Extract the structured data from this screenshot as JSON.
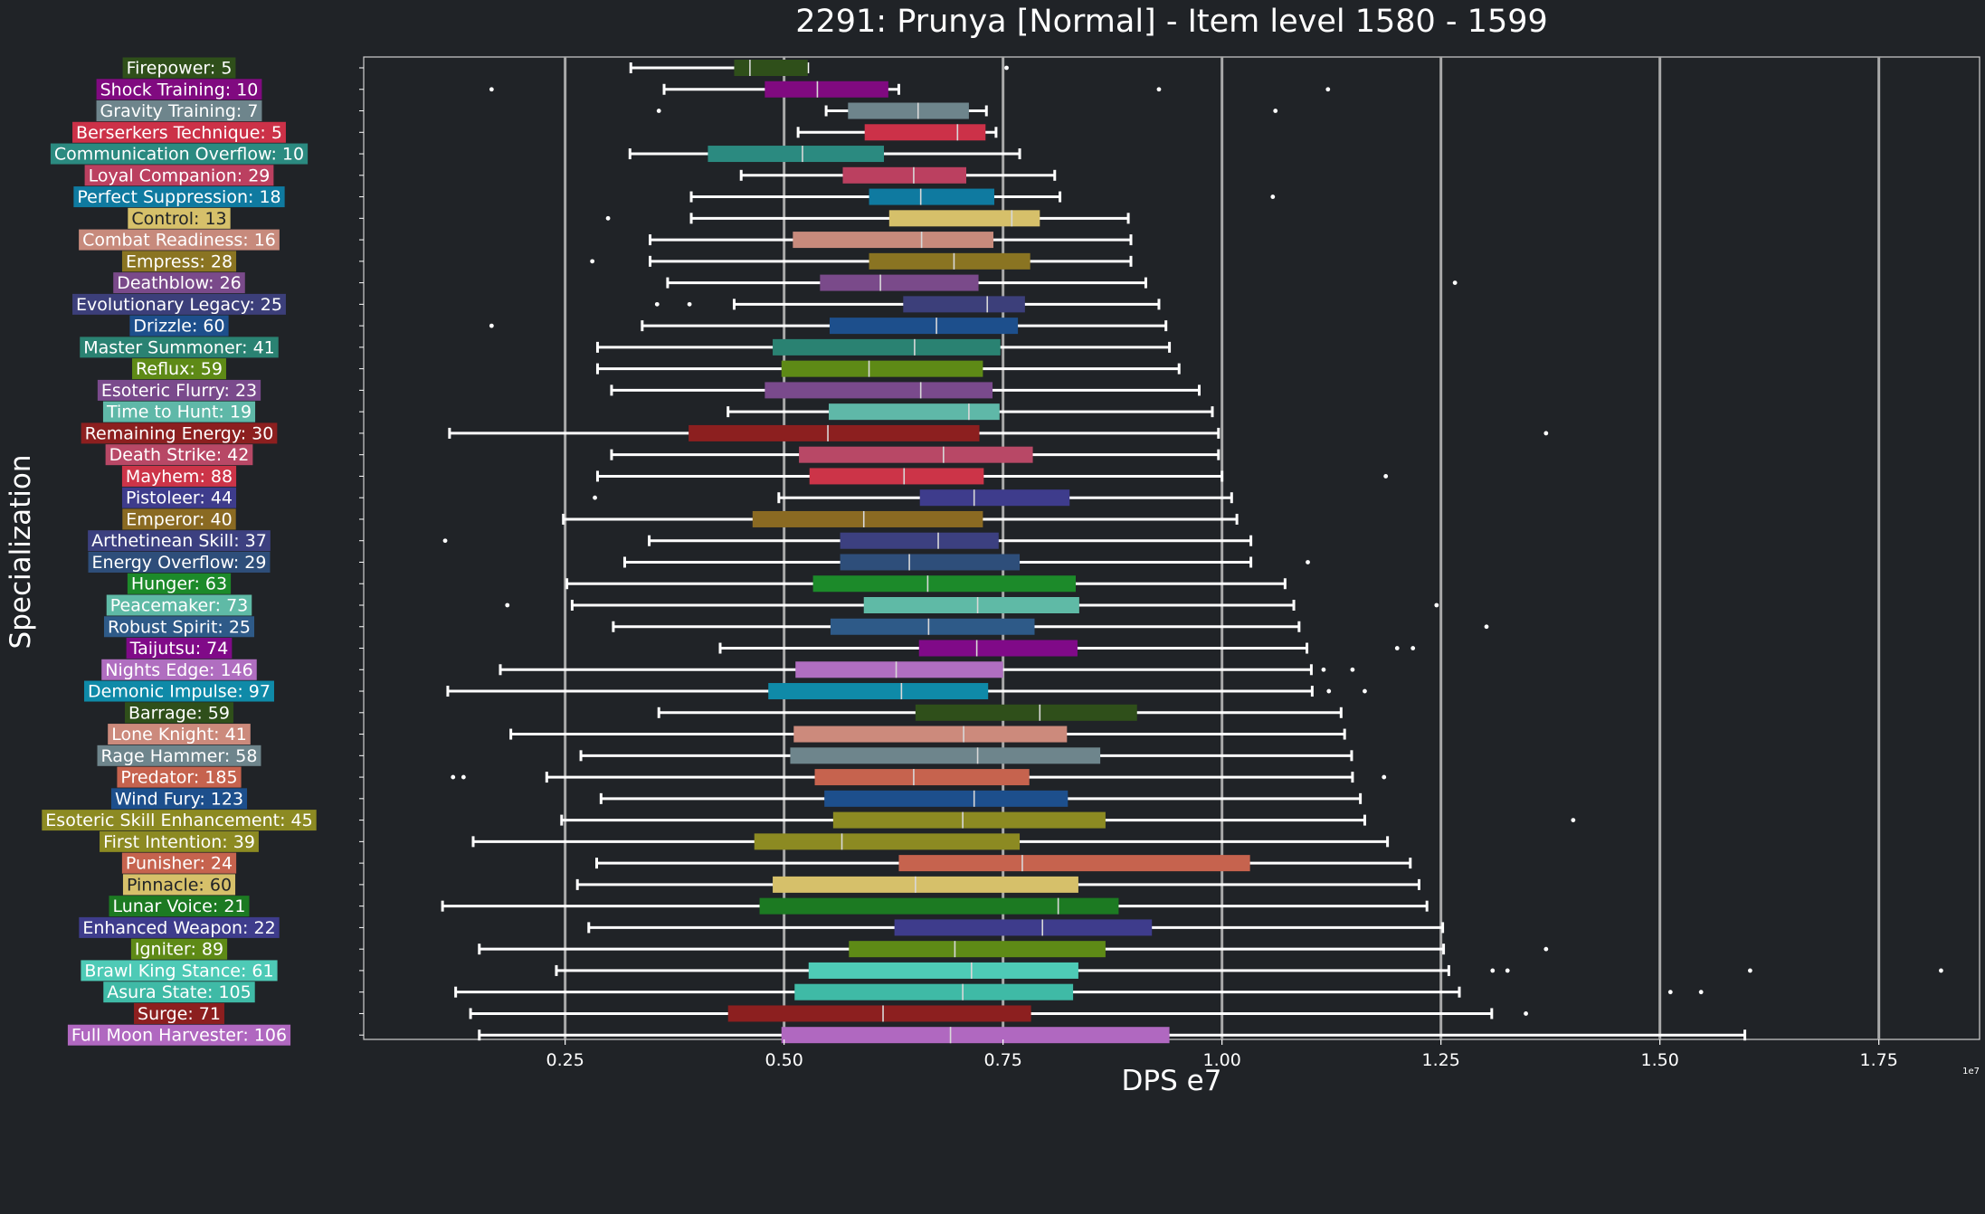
{
  "chart_data": {
    "type": "boxplot",
    "orientation": "horizontal",
    "title": "2291: Prunya [Normal] - Item level 1580 - 1599",
    "xlabel": "DPS e7",
    "ylabel": "Specialization",
    "x_scale_label": "1e7",
    "xlim": [
      0.02,
      1.865
    ],
    "xticks": [
      0.25,
      0.5,
      0.75,
      1.0,
      1.25,
      1.5,
      1.75
    ],
    "xtick_labels": [
      "0.25",
      "0.50",
      "0.75",
      "1.00",
      "1.25",
      "1.50",
      "1.75"
    ],
    "grid": "vertical gridlines at major x ticks",
    "series": [
      {
        "name": "Firepower: 5",
        "color": "#2f4f1a",
        "whisker_low": 0.325,
        "q1": 0.443,
        "median": 0.461,
        "q3": 0.527,
        "whisker_high": 0.527,
        "outliers": [
          0.754
        ]
      },
      {
        "name": "Shock Training: 10",
        "color": "#800a80",
        "whisker_low": 0.363,
        "q1": 0.478,
        "median": 0.538,
        "q3": 0.619,
        "whisker_high": 0.631,
        "outliers": [
          0.166,
          0.928,
          1.121
        ]
      },
      {
        "name": "Gravity Training: 7",
        "color": "#6e858c",
        "whisker_low": 0.548,
        "q1": 0.573,
        "median": 0.653,
        "q3": 0.711,
        "whisker_high": 0.731,
        "outliers": [
          0.357,
          1.061
        ]
      },
      {
        "name": "Berserkers Technique: 5",
        "color": "#cc3148",
        "whisker_low": 0.516,
        "q1": 0.592,
        "median": 0.698,
        "q3": 0.73,
        "whisker_high": 0.742,
        "outliers": []
      },
      {
        "name": "Communication Overflow: 10",
        "color": "#2b8a80",
        "whisker_low": 0.324,
        "q1": 0.413,
        "median": 0.521,
        "q3": 0.614,
        "whisker_high": 0.769,
        "outliers": []
      },
      {
        "name": "Loyal Companion: 29",
        "color": "#bb4060",
        "whisker_low": 0.451,
        "q1": 0.567,
        "median": 0.648,
        "q3": 0.708,
        "whisker_high": 0.809,
        "outliers": []
      },
      {
        "name": "Perfect Suppression: 18",
        "color": "#0f7aa0",
        "whisker_low": 0.394,
        "q1": 0.597,
        "median": 0.656,
        "q3": 0.74,
        "whisker_high": 0.815,
        "outliers": [
          1.058
        ]
      },
      {
        "name": "Control: 13",
        "color": "#d6c06a",
        "whisker_low": 0.394,
        "q1": 0.62,
        "median": 0.76,
        "q3": 0.792,
        "whisker_high": 0.893,
        "outliers": [
          0.299
        ]
      },
      {
        "name": "Combat Readiness: 16",
        "color": "#c78a7c",
        "whisker_low": 0.347,
        "q1": 0.51,
        "median": 0.657,
        "q3": 0.739,
        "whisker_high": 0.896,
        "outliers": []
      },
      {
        "name": "Empress: 28",
        "color": "#8a7422",
        "whisker_low": 0.347,
        "q1": 0.597,
        "median": 0.694,
        "q3": 0.781,
        "whisker_high": 0.896,
        "outliers": [
          0.281
        ]
      },
      {
        "name": "Deathblow: 26",
        "color": "#7a4a8a",
        "whisker_low": 0.367,
        "q1": 0.541,
        "median": 0.61,
        "q3": 0.722,
        "whisker_high": 0.913,
        "outliers": [
          1.266
        ]
      },
      {
        "name": "Evolutionary Legacy: 25",
        "color": "#3c3f7a",
        "whisker_low": 0.443,
        "q1": 0.636,
        "median": 0.732,
        "q3": 0.775,
        "whisker_high": 0.928,
        "outliers": [
          0.355,
          0.392
        ]
      },
      {
        "name": "Drizzle: 60",
        "color": "#1d4f8c",
        "whisker_low": 0.338,
        "q1": 0.552,
        "median": 0.674,
        "q3": 0.767,
        "whisker_high": 0.936,
        "outliers": [
          0.166
        ]
      },
      {
        "name": "Master Summoner: 41",
        "color": "#2a8272",
        "whisker_low": 0.287,
        "q1": 0.487,
        "median": 0.649,
        "q3": 0.747,
        "whisker_high": 0.94,
        "outliers": []
      },
      {
        "name": "Reflux: 59",
        "color": "#5e8a16",
        "whisker_low": 0.287,
        "q1": 0.497,
        "median": 0.597,
        "q3": 0.727,
        "whisker_high": 0.951,
        "outliers": []
      },
      {
        "name": "Esoteric Flurry: 23",
        "color": "#7a4a8c",
        "whisker_low": 0.303,
        "q1": 0.478,
        "median": 0.656,
        "q3": 0.738,
        "whisker_high": 0.974,
        "outliers": []
      },
      {
        "name": "Time to Hunt: 19",
        "color": "#5fb8a8",
        "whisker_low": 0.436,
        "q1": 0.551,
        "median": 0.711,
        "q3": 0.746,
        "whisker_high": 0.989,
        "outliers": []
      },
      {
        "name": "Remaining Energy: 30",
        "color": "#8c1f1f",
        "whisker_low": 0.118,
        "q1": 0.391,
        "median": 0.55,
        "q3": 0.723,
        "whisker_high": 0.996,
        "outliers": [
          1.37
        ]
      },
      {
        "name": "Death Strike: 42",
        "color": "#b84866",
        "whisker_low": 0.303,
        "q1": 0.517,
        "median": 0.682,
        "q3": 0.784,
        "whisker_high": 0.996,
        "outliers": []
      },
      {
        "name": "Mayhem: 88",
        "color": "#cc3448",
        "whisker_low": 0.287,
        "q1": 0.529,
        "median": 0.637,
        "q3": 0.728,
        "whisker_high": 1.0,
        "outliers": [
          1.187
        ]
      },
      {
        "name": "Pistoleer: 44",
        "color": "#3e3c8c",
        "whisker_low": 0.494,
        "q1": 0.655,
        "median": 0.717,
        "q3": 0.826,
        "whisker_high": 1.011,
        "outliers": [
          0.284
        ]
      },
      {
        "name": "Emperor: 40",
        "color": "#8a6a22",
        "whisker_low": 0.248,
        "q1": 0.464,
        "median": 0.591,
        "q3": 0.727,
        "whisker_high": 1.017,
        "outliers": []
      },
      {
        "name": "Arthetinean Skill: 37",
        "color": "#3c4080",
        "whisker_low": 0.346,
        "q1": 0.564,
        "median": 0.676,
        "q3": 0.745,
        "whisker_high": 1.033,
        "outliers": [
          0.113
        ]
      },
      {
        "name": "Energy Overflow: 29",
        "color": "#2e4e7a",
        "whisker_low": 0.318,
        "q1": 0.564,
        "median": 0.643,
        "q3": 0.769,
        "whisker_high": 1.033,
        "outliers": [
          1.098
        ]
      },
      {
        "name": "Hunger: 63",
        "color": "#1c8a2a",
        "whisker_low": 0.252,
        "q1": 0.533,
        "median": 0.664,
        "q3": 0.833,
        "whisker_high": 1.072,
        "outliers": []
      },
      {
        "name": "Peacemaker: 73",
        "color": "#5fbaa6",
        "whisker_low": 0.258,
        "q1": 0.591,
        "median": 0.721,
        "q3": 0.837,
        "whisker_high": 1.082,
        "outliers": [
          0.184,
          1.245
        ]
      },
      {
        "name": "Robust Spirit: 25",
        "color": "#2e5a88",
        "whisker_low": 0.305,
        "q1": 0.553,
        "median": 0.665,
        "q3": 0.786,
        "whisker_high": 1.088,
        "outliers": [
          1.302
        ]
      },
      {
        "name": "Taijutsu: 74",
        "color": "#800a88",
        "whisker_low": 0.427,
        "q1": 0.654,
        "median": 0.72,
        "q3": 0.835,
        "whisker_high": 1.097,
        "outliers": [
          1.2,
          1.218
        ]
      },
      {
        "name": "Nights Edge: 146",
        "color": "#b06ec0",
        "whisker_low": 0.176,
        "q1": 0.513,
        "median": 0.628,
        "q3": 0.75,
        "whisker_high": 1.102,
        "outliers": [
          1.116,
          1.149
        ]
      },
      {
        "name": "Demonic Impulse: 97",
        "color": "#0f8aa8",
        "whisker_low": 0.116,
        "q1": 0.482,
        "median": 0.634,
        "q3": 0.733,
        "whisker_high": 1.103,
        "outliers": [
          1.122,
          1.163
        ]
      },
      {
        "name": "Barrage: 59",
        "color": "#2f4f1a",
        "whisker_low": 0.357,
        "q1": 0.65,
        "median": 0.792,
        "q3": 0.903,
        "whisker_high": 1.136,
        "outliers": []
      },
      {
        "name": "Lone Knight: 41",
        "color": "#cc8a7c",
        "whisker_low": 0.188,
        "q1": 0.511,
        "median": 0.705,
        "q3": 0.823,
        "whisker_high": 1.14,
        "outliers": []
      },
      {
        "name": "Rage Hammer: 58",
        "color": "#6e858c",
        "whisker_low": 0.268,
        "q1": 0.507,
        "median": 0.721,
        "q3": 0.861,
        "whisker_high": 1.148,
        "outliers": []
      },
      {
        "name": "Predator: 185",
        "color": "#c6634e",
        "whisker_low": 0.229,
        "q1": 0.535,
        "median": 0.648,
        "q3": 0.78,
        "whisker_high": 1.149,
        "outliers": [
          0.122,
          0.134,
          1.185
        ]
      },
      {
        "name": "Wind Fury: 123",
        "color": "#1d4f8c",
        "whisker_low": 0.291,
        "q1": 0.546,
        "median": 0.717,
        "q3": 0.824,
        "whisker_high": 1.158,
        "outliers": []
      },
      {
        "name": "Esoteric Skill Enhancement: 45",
        "color": "#8c8a22",
        "whisker_low": 0.246,
        "q1": 0.556,
        "median": 0.704,
        "q3": 0.867,
        "whisker_high": 1.163,
        "outliers": [
          1.401
        ]
      },
      {
        "name": "First Intention: 39",
        "color": "#8c8a22",
        "whisker_low": 0.145,
        "q1": 0.466,
        "median": 0.566,
        "q3": 0.769,
        "whisker_high": 1.189,
        "outliers": []
      },
      {
        "name": "Punisher: 24",
        "color": "#c6634e",
        "whisker_low": 0.286,
        "q1": 0.631,
        "median": 0.772,
        "q3": 1.032,
        "whisker_high": 1.215,
        "outliers": []
      },
      {
        "name": "Pinnacle: 60",
        "color": "#d6c06a",
        "whisker_low": 0.264,
        "q1": 0.487,
        "median": 0.65,
        "q3": 0.836,
        "whisker_high": 1.225,
        "outliers": []
      },
      {
        "name": "Lunar Voice: 21",
        "color": "#1c7a22",
        "whisker_low": 0.11,
        "q1": 0.472,
        "median": 0.813,
        "q3": 0.882,
        "whisker_high": 1.234,
        "outliers": []
      },
      {
        "name": "Enhanced Weapon: 22",
        "color": "#3e3c8c",
        "whisker_low": 0.277,
        "q1": 0.626,
        "median": 0.795,
        "q3": 0.92,
        "whisker_high": 1.252,
        "outliers": []
      },
      {
        "name": "Igniter: 89",
        "color": "#5e8a16",
        "whisker_low": 0.152,
        "q1": 0.574,
        "median": 0.695,
        "q3": 0.867,
        "whisker_high": 1.253,
        "outliers": [
          1.37
        ]
      },
      {
        "name": "Brawl King Stance: 61",
        "color": "#4ecab6",
        "whisker_low": 0.24,
        "q1": 0.528,
        "median": 0.714,
        "q3": 0.836,
        "whisker_high": 1.259,
        "outliers": [
          1.309,
          1.326,
          1.603,
          1.821
        ]
      },
      {
        "name": "Asura State: 105",
        "color": "#3fbaa6",
        "whisker_low": 0.125,
        "q1": 0.512,
        "median": 0.704,
        "q3": 0.83,
        "whisker_high": 1.271,
        "outliers": [
          1.512,
          1.547
        ]
      },
      {
        "name": "Surge: 71",
        "color": "#8c1f1f",
        "whisker_low": 0.142,
        "q1": 0.436,
        "median": 0.613,
        "q3": 0.782,
        "whisker_high": 1.308,
        "outliers": [
          1.347
        ]
      },
      {
        "name": "Full Moon Harvester: 106",
        "color": "#b068c0",
        "whisker_low": 0.152,
        "q1": 0.497,
        "median": 0.69,
        "q3": 0.94,
        "whisker_high": 1.597,
        "outliers": []
      }
    ]
  }
}
